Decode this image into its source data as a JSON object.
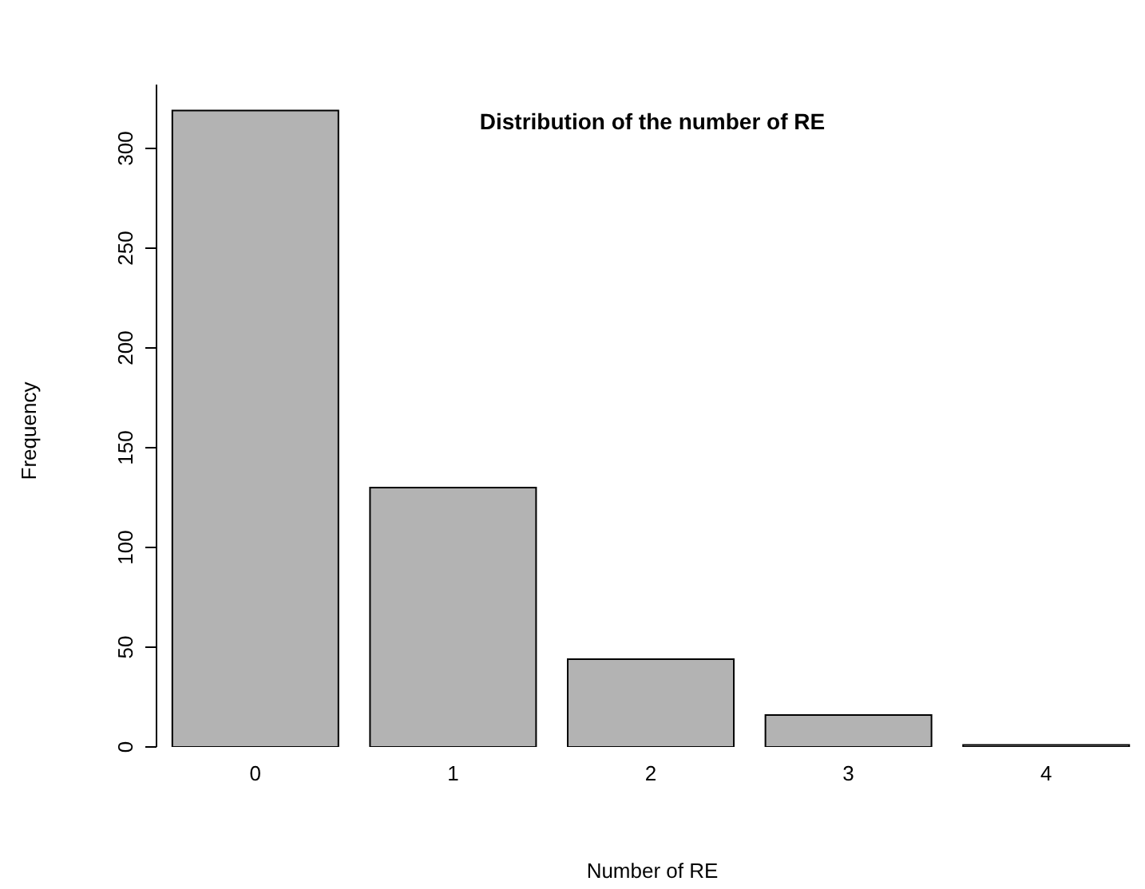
{
  "chart_data": {
    "type": "bar",
    "title": "Distribution of the number of RE",
    "xlabel": "Number of RE",
    "ylabel": "Frequency",
    "categories": [
      "0",
      "1",
      "2",
      "3",
      "4"
    ],
    "values": [
      319,
      130,
      44,
      16,
      1
    ],
    "color": "#b3b3b3",
    "ylim": [
      0,
      332
    ],
    "yticks": [
      0,
      50,
      100,
      150,
      200,
      250,
      300
    ],
    "grid": false,
    "legend": false
  }
}
